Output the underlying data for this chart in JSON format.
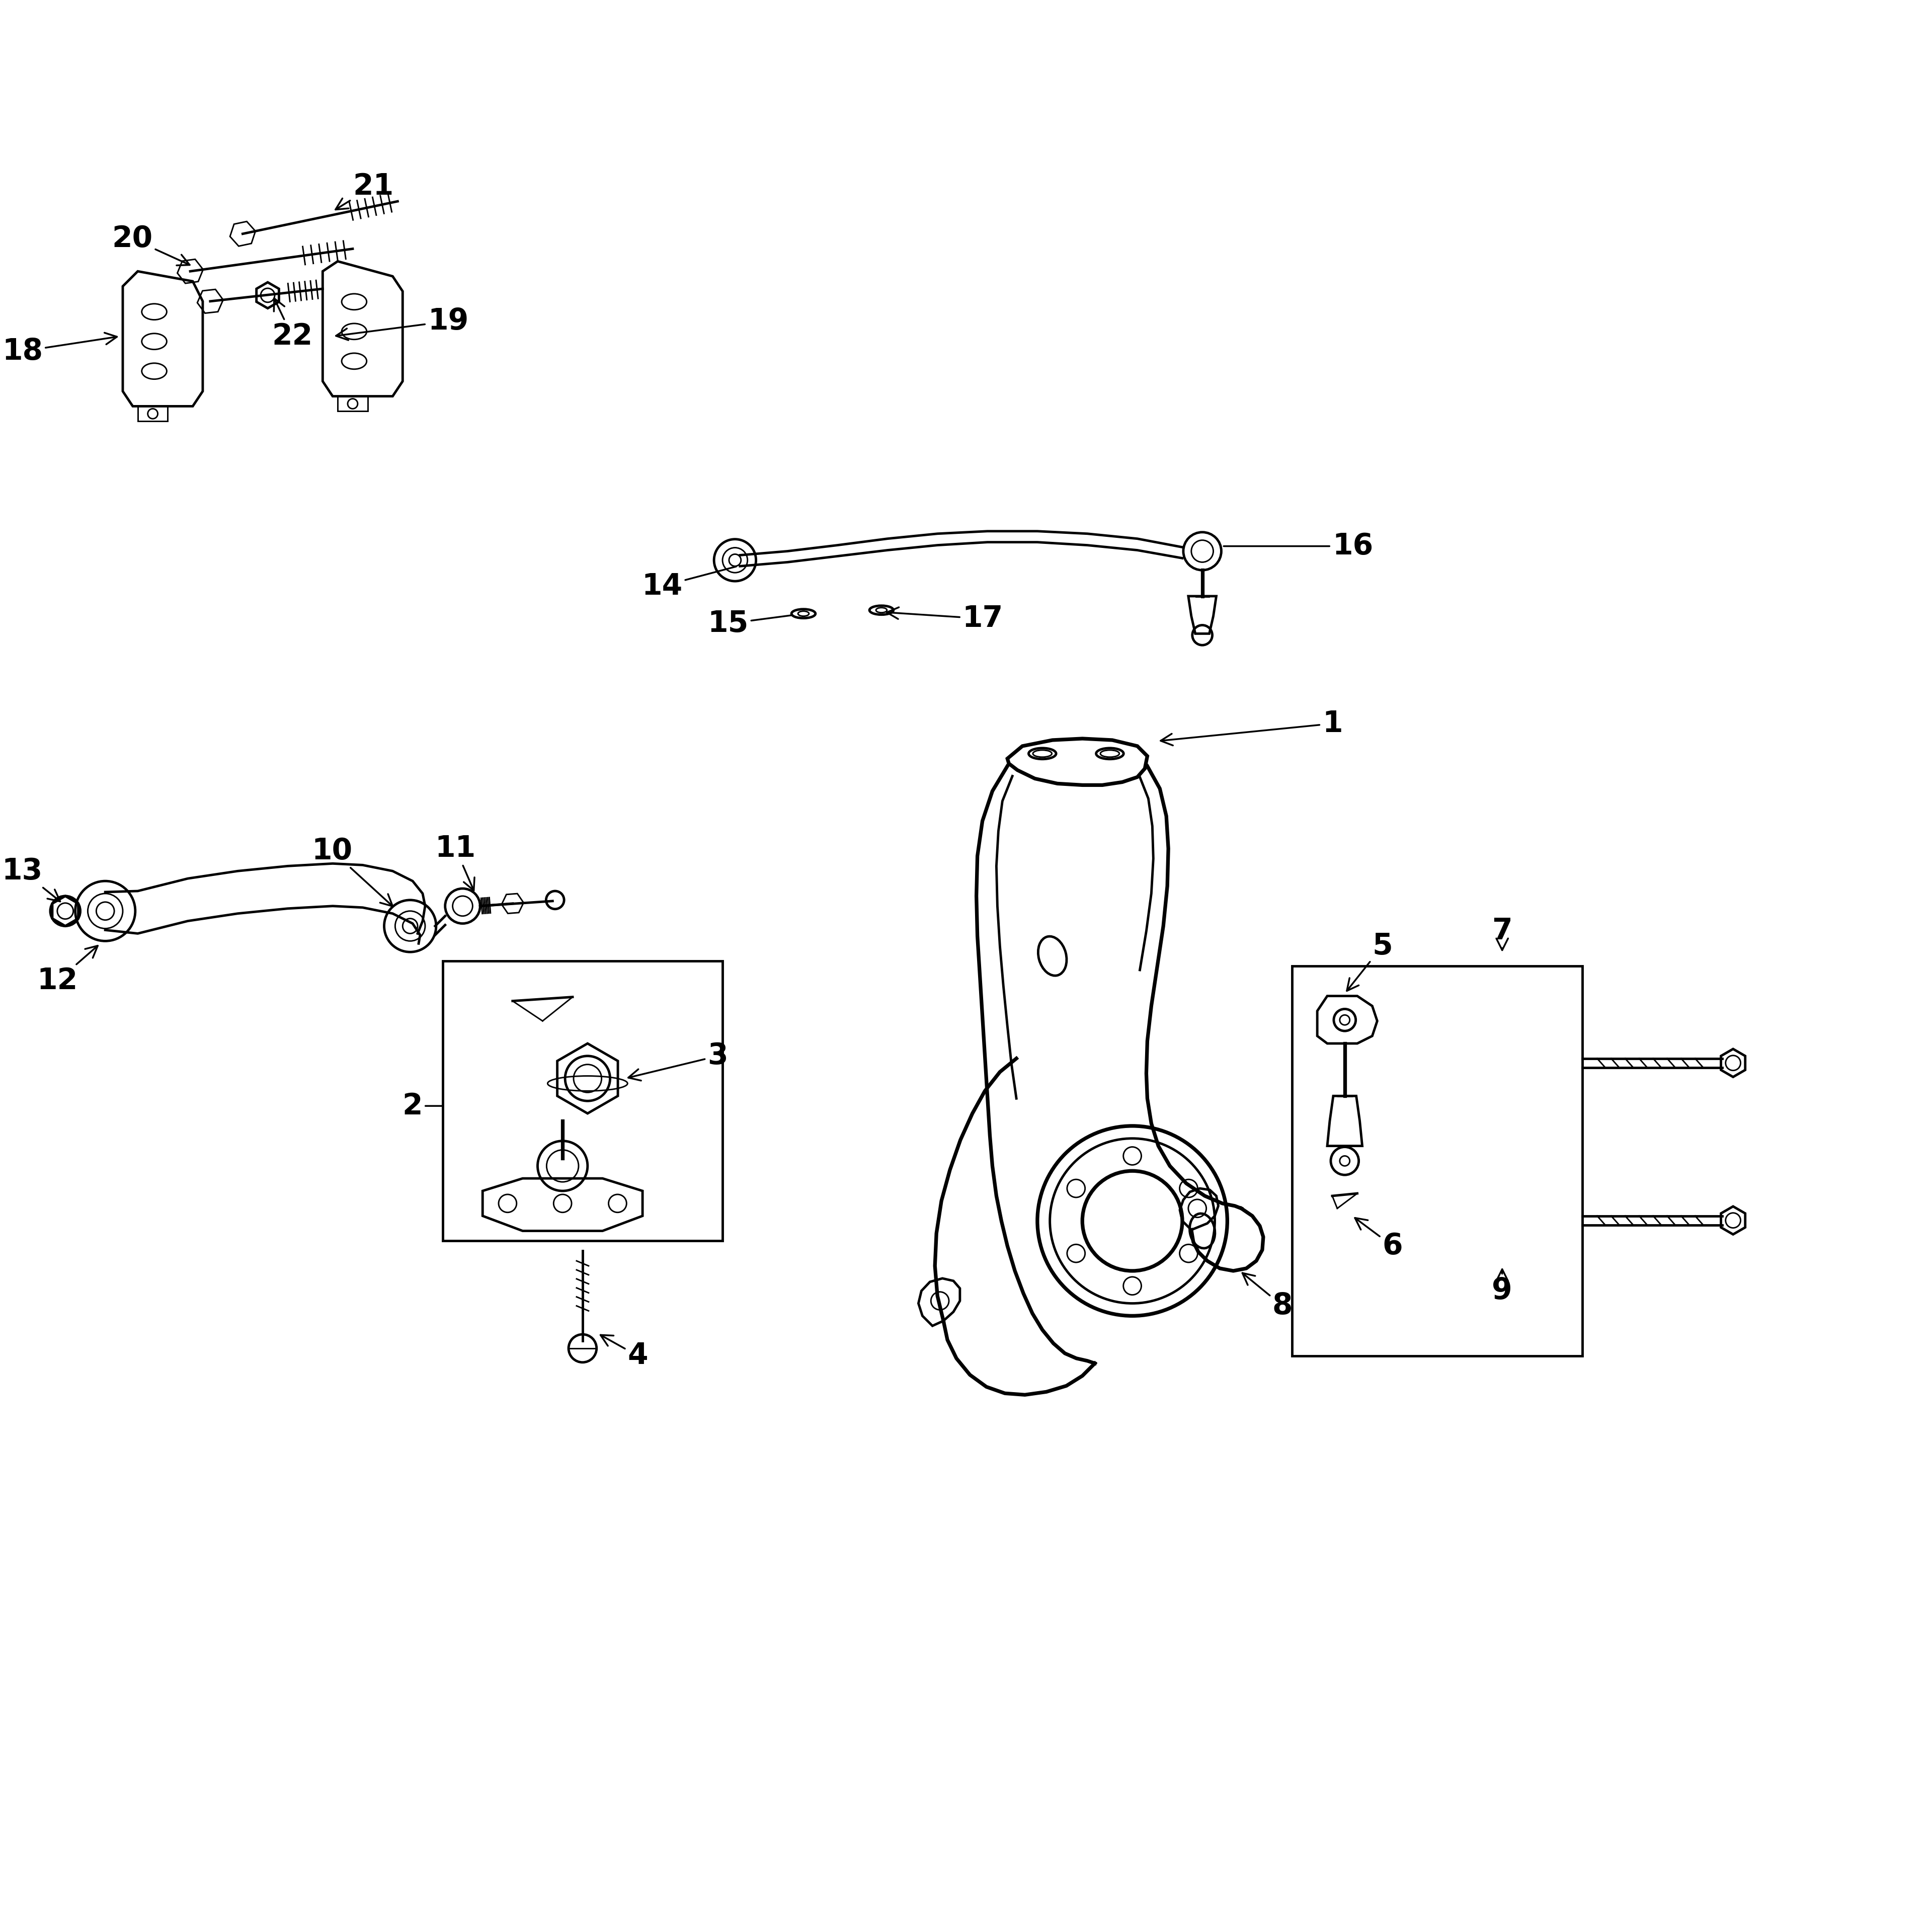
{
  "bg_color": "#ffffff",
  "line_color": "#000000",
  "fig_width": 38.4,
  "fig_height": 38.4,
  "font_size": 42,
  "lw": 3.5
}
